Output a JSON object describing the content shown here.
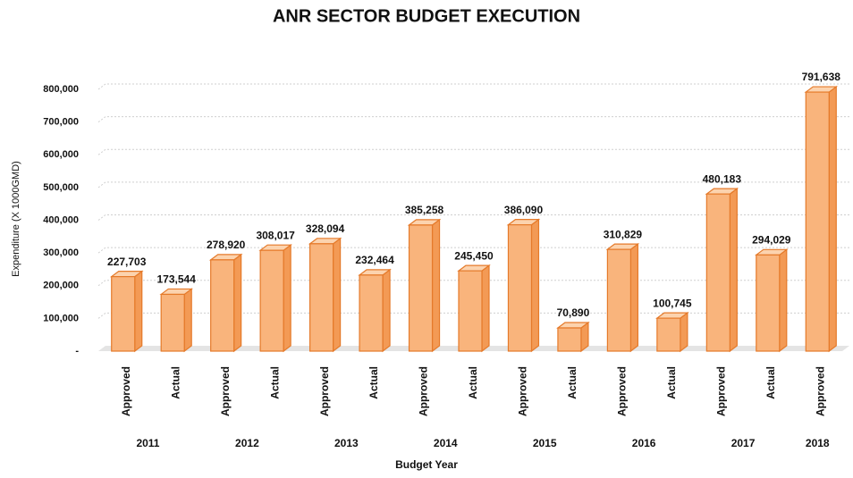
{
  "chart_data": {
    "type": "bar3d",
    "title": "ANR SECTOR BUDGET EXECUTION",
    "x_label": "Budget Year",
    "y_label": "Expenditure (X 1000GMD)",
    "categories": [
      "Approved",
      "Actual",
      "Approved",
      "Actual",
      "Approved",
      "Actual",
      "Approved",
      "Actual",
      "Approved",
      "Actual",
      "Approved",
      "Actual",
      "Approved",
      "Actual",
      "Approved"
    ],
    "category_groups": [
      "2011",
      "2011",
      "2012",
      "2012",
      "2013",
      "2013",
      "2014",
      "2014",
      "2015",
      "2015",
      "2016",
      "2016",
      "2017",
      "2017",
      "2018"
    ],
    "values": [
      227703,
      173544,
      278920,
      308017,
      328094,
      232464,
      385258,
      245450,
      386090,
      70890,
      310829,
      100745,
      480183,
      294029,
      791638
    ],
    "value_labels": [
      "227,703",
      "173,544",
      "278,920",
      "308,017",
      "328,094",
      "232,464",
      "385,258",
      "245,450",
      "386,090",
      "70,890",
      "310,829",
      "100,745",
      "480,183",
      "294,029",
      "791,638"
    ],
    "color": "#f9b47c",
    "edge_color": "#e57a2a",
    "ylim": [
      0,
      800000
    ],
    "yticks": [
      {
        "value": 0,
        "label": "-"
      },
      {
        "value": 100000,
        "label": "100,000"
      },
      {
        "value": 200000,
        "label": "200,000"
      },
      {
        "value": 300000,
        "label": "300,000"
      },
      {
        "value": 400000,
        "label": "400,000"
      },
      {
        "value": 500000,
        "label": "500,000"
      },
      {
        "value": 600000,
        "label": "600,000"
      },
      {
        "value": 700000,
        "label": "700,000"
      },
      {
        "value": 800000,
        "label": "800,000"
      }
    ],
    "grid": true
  }
}
